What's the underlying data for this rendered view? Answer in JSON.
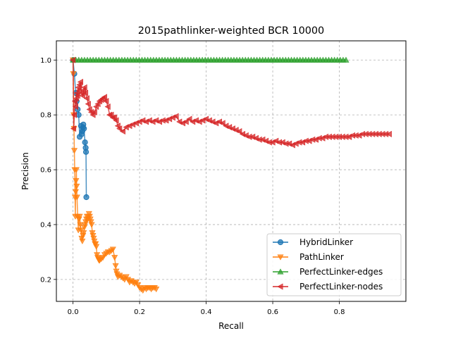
{
  "chart_data": {
    "type": "line",
    "title": "2015pathlinker-weighted BCR 10000",
    "xlabel": "Recall",
    "ylabel": "Precision",
    "xlim": [
      -0.05,
      1.0
    ],
    "ylim": [
      0.12,
      1.07
    ],
    "xticks": [
      0.0,
      0.2,
      0.4,
      0.6,
      0.8
    ],
    "yticks": [
      0.2,
      0.4,
      0.6,
      0.8,
      1.0
    ],
    "xtick_labels": [
      "0.0",
      "0.2",
      "0.4",
      "0.6",
      "0.8"
    ],
    "ytick_labels": [
      "0.2",
      "0.4",
      "0.6",
      "0.8",
      "1.0"
    ],
    "grid": true,
    "legend_position": "bottom-right",
    "series": [
      {
        "name": "HybridLinker",
        "color": "#1f77b4",
        "marker": "circle",
        "x": [
          0.0,
          0.004,
          0.008,
          0.011,
          0.014,
          0.017,
          0.02,
          0.024,
          0.026,
          0.028,
          0.03,
          0.031,
          0.033,
          0.036,
          0.038,
          0.039,
          0.04
        ],
        "y": [
          1.0,
          0.95,
          0.88,
          0.85,
          0.82,
          0.8,
          0.72,
          0.76,
          0.73,
          0.74,
          0.755,
          0.765,
          0.75,
          0.7,
          0.68,
          0.665,
          0.5
        ]
      },
      {
        "name": "PathLinker",
        "color": "#ff7f0e",
        "marker": "triangle-down",
        "x": [
          0.0,
          0.001,
          0.002,
          0.003,
          0.004,
          0.005,
          0.006,
          0.007,
          0.008,
          0.009,
          0.01,
          0.011,
          0.012,
          0.014,
          0.016,
          0.018,
          0.02,
          0.022,
          0.024,
          0.026,
          0.028,
          0.03,
          0.032,
          0.034,
          0.036,
          0.038,
          0.04,
          0.042,
          0.044,
          0.046,
          0.048,
          0.05,
          0.052,
          0.054,
          0.056,
          0.058,
          0.06,
          0.062,
          0.064,
          0.066,
          0.068,
          0.07,
          0.072,
          0.074,
          0.076,
          0.078,
          0.08,
          0.085,
          0.09,
          0.095,
          0.1,
          0.105,
          0.11,
          0.115,
          0.12,
          0.125,
          0.128,
          0.13,
          0.132,
          0.135,
          0.14,
          0.145,
          0.15,
          0.155,
          0.16,
          0.165,
          0.17,
          0.175,
          0.18,
          0.185,
          0.19,
          0.195,
          0.2,
          0.205,
          0.21,
          0.215,
          0.22,
          0.225,
          0.23,
          0.235,
          0.24,
          0.245,
          0.25
        ],
        "y": [
          1.0,
          0.95,
          0.8,
          0.75,
          0.67,
          0.6,
          0.5,
          0.43,
          0.52,
          0.56,
          0.6,
          0.54,
          0.5,
          0.43,
          0.38,
          0.42,
          0.43,
          0.4,
          0.38,
          0.35,
          0.34,
          0.36,
          0.37,
          0.39,
          0.4,
          0.41,
          0.42,
          0.43,
          0.42,
          0.43,
          0.44,
          0.43,
          0.42,
          0.41,
          0.4,
          0.37,
          0.36,
          0.35,
          0.34,
          0.33,
          0.33,
          0.32,
          0.29,
          0.28,
          0.275,
          0.27,
          0.27,
          0.275,
          0.28,
          0.29,
          0.295,
          0.3,
          0.3,
          0.305,
          0.31,
          0.28,
          0.25,
          0.23,
          0.22,
          0.21,
          0.215,
          0.21,
          0.205,
          0.2,
          0.21,
          0.2,
          0.19,
          0.195,
          0.19,
          0.185,
          0.19,
          0.18,
          0.17,
          0.165,
          0.16,
          0.17,
          0.165,
          0.17,
          0.17,
          0.165,
          0.17,
          0.17,
          0.165
        ]
      },
      {
        "name": "PerfectLinker-edges",
        "color": "#2ca02c",
        "marker": "triangle-up",
        "x": [
          0.0,
          0.82
        ],
        "y": [
          1.0,
          1.0
        ]
      },
      {
        "name": "PerfectLinker-nodes",
        "color": "#d62728",
        "marker": "triangle-left",
        "x": [
          0.0,
          0.002,
          0.004,
          0.006,
          0.008,
          0.01,
          0.012,
          0.014,
          0.016,
          0.018,
          0.02,
          0.023,
          0.026,
          0.029,
          0.032,
          0.035,
          0.038,
          0.042,
          0.046,
          0.05,
          0.055,
          0.06,
          0.065,
          0.07,
          0.075,
          0.08,
          0.085,
          0.09,
          0.095,
          0.1,
          0.105,
          0.11,
          0.115,
          0.12,
          0.125,
          0.13,
          0.135,
          0.14,
          0.15,
          0.16,
          0.17,
          0.18,
          0.19,
          0.2,
          0.21,
          0.22,
          0.23,
          0.24,
          0.25,
          0.26,
          0.27,
          0.28,
          0.29,
          0.3,
          0.31,
          0.32,
          0.33,
          0.34,
          0.35,
          0.36,
          0.37,
          0.38,
          0.39,
          0.4,
          0.41,
          0.42,
          0.43,
          0.44,
          0.45,
          0.46,
          0.47,
          0.48,
          0.49,
          0.5,
          0.51,
          0.52,
          0.53,
          0.54,
          0.55,
          0.56,
          0.57,
          0.58,
          0.59,
          0.6,
          0.61,
          0.62,
          0.63,
          0.64,
          0.65,
          0.66,
          0.67,
          0.68,
          0.69,
          0.7,
          0.71,
          0.72,
          0.73,
          0.74,
          0.75,
          0.76,
          0.77,
          0.78,
          0.79,
          0.8,
          0.81,
          0.82,
          0.83,
          0.84,
          0.85,
          0.86,
          0.87,
          0.88,
          0.89,
          0.9,
          0.91,
          0.92,
          0.93,
          0.94,
          0.95
        ],
        "y": [
          1.0,
          0.75,
          0.8,
          0.85,
          0.83,
          0.86,
          0.88,
          0.87,
          0.9,
          0.89,
          0.91,
          0.92,
          0.88,
          0.87,
          0.89,
          0.9,
          0.88,
          0.86,
          0.84,
          0.82,
          0.81,
          0.8,
          0.81,
          0.83,
          0.84,
          0.85,
          0.855,
          0.86,
          0.865,
          0.85,
          0.83,
          0.8,
          0.8,
          0.79,
          0.79,
          0.78,
          0.76,
          0.75,
          0.74,
          0.755,
          0.76,
          0.765,
          0.77,
          0.775,
          0.78,
          0.775,
          0.78,
          0.775,
          0.78,
          0.775,
          0.78,
          0.78,
          0.785,
          0.79,
          0.795,
          0.775,
          0.77,
          0.775,
          0.785,
          0.775,
          0.78,
          0.775,
          0.78,
          0.785,
          0.78,
          0.775,
          0.77,
          0.775,
          0.77,
          0.76,
          0.755,
          0.75,
          0.745,
          0.74,
          0.73,
          0.725,
          0.72,
          0.72,
          0.715,
          0.71,
          0.71,
          0.705,
          0.7,
          0.7,
          0.705,
          0.7,
          0.7,
          0.695,
          0.695,
          0.69,
          0.695,
          0.7,
          0.7,
          0.705,
          0.705,
          0.71,
          0.71,
          0.715,
          0.715,
          0.72,
          0.72,
          0.72,
          0.72,
          0.72,
          0.72,
          0.72,
          0.72,
          0.725,
          0.725,
          0.725,
          0.73,
          0.73,
          0.73,
          0.73,
          0.73,
          0.73,
          0.73,
          0.73,
          0.73
        ]
      }
    ]
  }
}
